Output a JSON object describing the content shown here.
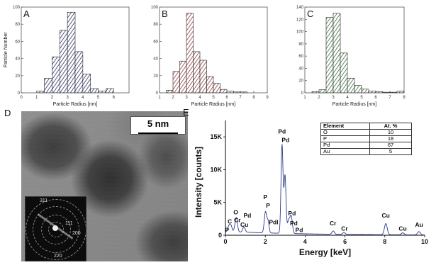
{
  "panels": {
    "a": "A",
    "b": "B",
    "c": "C",
    "d": "D",
    "e": "E"
  },
  "tem": {
    "scale_label": "5 nm",
    "saed_labels": [
      "311",
      "111",
      "200",
      "220"
    ]
  },
  "chart_data": [
    {
      "id": "A",
      "type": "bar",
      "xlabel": "Particle Radius [nm]",
      "ylabel": "Particle Number",
      "xlim": [
        0,
        7
      ],
      "ylim": [
        0,
        100
      ],
      "xticks": [
        0,
        1,
        2,
        3,
        4,
        5,
        6
      ],
      "yticks": [
        0,
        20,
        40,
        60,
        80,
        100
      ],
      "bin_width": 0.5,
      "bins": [
        1.0,
        1.5,
        2.0,
        2.5,
        3.0,
        3.5,
        4.0,
        4.5,
        5.0,
        5.5
      ],
      "values": [
        2,
        17,
        42,
        73,
        94,
        48,
        22,
        5,
        2,
        5
      ],
      "color": "#2a2f5e"
    },
    {
      "id": "B",
      "type": "bar",
      "xlabel": "Particle Radius [nm]",
      "ylabel": "",
      "xlim": [
        1,
        9
      ],
      "ylim": [
        0,
        100
      ],
      "xticks": [
        1,
        2,
        3,
        4,
        5,
        6,
        7,
        8,
        9
      ],
      "yticks": [
        0,
        20,
        40,
        60,
        80,
        100
      ],
      "bin_width": 0.5,
      "bins": [
        1.5,
        2.0,
        2.5,
        3.0,
        3.5,
        4.0,
        4.5,
        5.0,
        5.5,
        6.0,
        6.5,
        7.0
      ],
      "values": [
        3,
        25,
        37,
        93,
        48,
        38,
        19,
        11,
        4,
        2,
        1,
        1
      ],
      "color": "#8a3a3a"
    },
    {
      "id": "C",
      "type": "bar",
      "xlabel": "Particle Radius [nm]",
      "ylabel": "",
      "xlim": [
        1,
        8
      ],
      "ylim": [
        0,
        140
      ],
      "xticks": [
        1,
        2,
        3,
        4,
        5,
        6,
        7,
        8
      ],
      "yticks": [
        0,
        20,
        40,
        60,
        80,
        100,
        120,
        140
      ],
      "bin_width": 0.5,
      "bins": [
        1.5,
        2.0,
        2.5,
        3.0,
        3.5,
        4.0,
        4.5,
        5.0,
        5.5,
        6.0,
        6.5,
        7.0,
        7.5
      ],
      "values": [
        2,
        5,
        123,
        130,
        65,
        24,
        12,
        6,
        3,
        2,
        1,
        1,
        3
      ],
      "color": "#3b6e3b"
    },
    {
      "id": "E",
      "type": "line",
      "xlabel": "Energy [keV]",
      "ylabel": "Intensity [counts]",
      "xlim": [
        0,
        10
      ],
      "ylim": [
        0,
        17500
      ],
      "xticks": [
        0,
        2,
        4,
        6,
        8,
        10
      ],
      "yticks": [
        0,
        5000,
        10000,
        15000
      ],
      "ytick_labels": [
        "0",
        "5K",
        "10K",
        "15K"
      ],
      "baseline": 600,
      "peaks": [
        {
          "x": 0.18,
          "h": 900,
          "w": 0.05
        },
        {
          "x": 0.28,
          "h": 900,
          "w": 0.05
        },
        {
          "x": 0.52,
          "h": 1400,
          "w": 0.06
        },
        {
          "x": 0.57,
          "h": 1000,
          "w": 0.05
        },
        {
          "x": 0.93,
          "h": 800,
          "w": 0.06
        },
        {
          "x": 2.01,
          "h": 3200,
          "w": 0.06
        },
        {
          "x": 2.14,
          "h": 1700,
          "w": 0.05
        },
        {
          "x": 2.84,
          "h": 13500,
          "w": 0.05
        },
        {
          "x": 2.99,
          "h": 8800,
          "w": 0.05
        },
        {
          "x": 3.17,
          "h": 1900,
          "w": 0.06
        },
        {
          "x": 3.3,
          "h": 2600,
          "w": 0.06
        },
        {
          "x": 5.41,
          "h": 500,
          "w": 0.06
        },
        {
          "x": 5.95,
          "h": 300,
          "w": 0.06
        },
        {
          "x": 8.05,
          "h": 1700,
          "w": 0.07
        },
        {
          "x": 8.9,
          "h": 300,
          "w": 0.07
        },
        {
          "x": 9.71,
          "h": 500,
          "w": 0.07
        }
      ],
      "peak_labels": [
        {
          "text": "P",
          "x": 0.08,
          "y": 500
        },
        {
          "text": "C",
          "x": 0.22,
          "y": 1800
        },
        {
          "text": "O",
          "x": 0.52,
          "y": 3200
        },
        {
          "text": "Cr",
          "x": 0.6,
          "y": 2000
        },
        {
          "text": "Cu",
          "x": 0.95,
          "y": 1300
        },
        {
          "text": "Pd",
          "x": 1.1,
          "y": 2700
        },
        {
          "text": "P",
          "x": 2.0,
          "y": 5500
        },
        {
          "text": "P",
          "x": 2.14,
          "y": 4200
        },
        {
          "text": "Pdl",
          "x": 2.42,
          "y": 1700
        },
        {
          "text": "Pd",
          "x": 2.84,
          "y": 15500
        },
        {
          "text": "Pd",
          "x": 3.02,
          "y": 14200
        },
        {
          "text": "Pd",
          "x": 3.34,
          "y": 3000
        },
        {
          "text": "Pd",
          "x": 3.43,
          "y": 1500
        },
        {
          "text": "Pd",
          "x": 3.7,
          "y": 500
        },
        {
          "text": "Cr",
          "x": 5.4,
          "y": 1500
        },
        {
          "text": "Cr",
          "x": 5.98,
          "y": 700
        },
        {
          "text": "Cu",
          "x": 8.05,
          "y": 2700
        },
        {
          "text": "Cu",
          "x": 8.9,
          "y": 700
        },
        {
          "text": "Au",
          "x": 9.72,
          "y": 1300
        }
      ],
      "color": "#2a3a8a",
      "table": {
        "headers": [
          "Element",
          "At. %"
        ],
        "rows": [
          [
            "O",
            "10"
          ],
          [
            "P",
            "18"
          ],
          [
            "Pd",
            "67"
          ],
          [
            "Au",
            "5"
          ]
        ]
      }
    }
  ]
}
